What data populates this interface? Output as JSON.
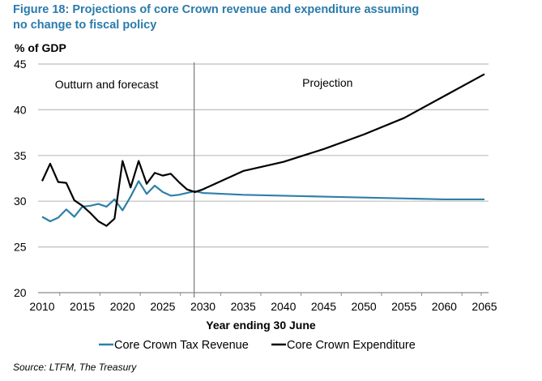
{
  "chart_data": {
    "type": "line",
    "title": "Figure 18: Projections of core Crown revenue and expenditure assuming no change to fiscal policy",
    "ylabel": "% of GDP",
    "xlabel": "Year ending 30 June",
    "ylim": [
      20,
      45
    ],
    "yticks": [
      20,
      25,
      30,
      35,
      40,
      45
    ],
    "xlim": [
      2010,
      2065
    ],
    "xticks": [
      2010,
      2015,
      2020,
      2025,
      2030,
      2035,
      2040,
      2045,
      2050,
      2055,
      2060,
      2065
    ],
    "grid": "horizontal",
    "divider_year": 2029,
    "annotations": [
      {
        "text": "Outturn and forecast",
        "x": 2016,
        "y": 42.8
      },
      {
        "text": "Projection",
        "x": 2047,
        "y": 42.8
      }
    ],
    "legend_position": "bottom",
    "series": [
      {
        "name": "Core Crown Tax Revenue",
        "color": "#2f7fa9",
        "x": [
          2010,
          2011,
          2012,
          2013,
          2014,
          2015,
          2016,
          2017,
          2018,
          2019,
          2020,
          2021,
          2022,
          2023,
          2024,
          2025,
          2026,
          2027,
          2028,
          2029,
          2030,
          2035,
          2040,
          2045,
          2050,
          2055,
          2060,
          2065
        ],
        "values": [
          28.3,
          27.8,
          28.2,
          29.1,
          28.3,
          29.4,
          29.5,
          29.7,
          29.4,
          30.2,
          29.0,
          30.5,
          32.2,
          30.8,
          31.7,
          31.0,
          30.6,
          30.7,
          30.9,
          31.1,
          30.9,
          30.7,
          30.6,
          30.5,
          30.4,
          30.3,
          30.2,
          30.2
        ]
      },
      {
        "name": "Core Crown Expenditure",
        "color": "#000000",
        "x": [
          2010,
          2011,
          2012,
          2013,
          2014,
          2015,
          2016,
          2017,
          2018,
          2019,
          2020,
          2021,
          2022,
          2023,
          2024,
          2025,
          2026,
          2027,
          2028,
          2029,
          2030,
          2032,
          2035,
          2040,
          2045,
          2050,
          2055,
          2060,
          2065
        ],
        "values": [
          32.2,
          34.1,
          32.1,
          32.0,
          30.1,
          29.5,
          28.7,
          27.8,
          27.3,
          28.1,
          34.4,
          31.5,
          34.4,
          31.9,
          33.1,
          32.8,
          33.0,
          32.1,
          31.3,
          31.0,
          31.3,
          32.1,
          33.3,
          34.3,
          35.7,
          37.3,
          39.1,
          41.5,
          43.9
        ]
      }
    ]
  },
  "source": "Source: LTFM, The Treasury"
}
